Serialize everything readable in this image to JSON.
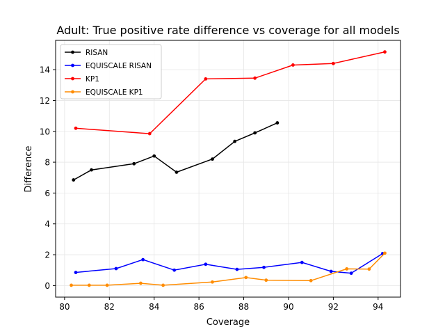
{
  "chart_data": {
    "type": "line",
    "title": "Adult: True positive rate difference vs coverage for all models",
    "xlabel": "Coverage",
    "ylabel": "Difference",
    "xlim": [
      79.6,
      95.0
    ],
    "ylim": [
      -0.75,
      15.9
    ],
    "xticks": [
      80,
      82,
      84,
      86,
      88,
      90,
      92,
      94
    ],
    "yticks": [
      0,
      2,
      4,
      6,
      8,
      10,
      12,
      14
    ],
    "grid": true,
    "legend_position": "upper-left",
    "series": [
      {
        "name": "RISAN",
        "color": "#000000",
        "x": [
          80.4,
          81.2,
          83.1,
          84.0,
          85.0,
          86.6,
          87.6,
          88.5,
          89.5
        ],
        "y": [
          6.85,
          7.5,
          7.9,
          8.4,
          7.35,
          8.2,
          9.35,
          9.9,
          10.55
        ]
      },
      {
        "name": "EQUISCALE RISAN",
        "color": "#0000ff",
        "x": [
          80.5,
          82.3,
          83.5,
          84.9,
          86.3,
          87.7,
          88.9,
          90.6,
          91.9,
          92.8,
          94.2
        ],
        "y": [
          0.85,
          1.1,
          1.68,
          1.0,
          1.38,
          1.05,
          1.18,
          1.5,
          0.92,
          0.8,
          2.07
        ]
      },
      {
        "name": "KP1",
        "color": "#ff0000",
        "x": [
          80.5,
          83.8,
          86.3,
          88.5,
          90.2,
          92.0,
          94.3
        ],
        "y": [
          10.2,
          9.85,
          13.4,
          13.45,
          14.3,
          14.4,
          15.15
        ]
      },
      {
        "name": "EQUISCALE KP1",
        "color": "#ff8c00",
        "x": [
          80.3,
          81.1,
          81.9,
          83.4,
          84.4,
          86.6,
          88.1,
          89.0,
          91.0,
          92.6,
          93.6,
          94.3
        ],
        "y": [
          0.02,
          0.02,
          0.02,
          0.15,
          0.02,
          0.23,
          0.52,
          0.35,
          0.32,
          1.08,
          1.07,
          2.1
        ]
      }
    ]
  }
}
